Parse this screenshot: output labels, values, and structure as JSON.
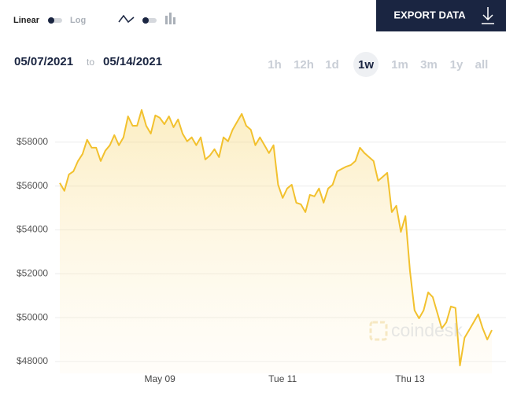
{
  "toolbar": {
    "linear": "Linear",
    "log": "Log",
    "export": "EXPORT DATA"
  },
  "date_range": {
    "from": "05/07/2021",
    "to_word": "to",
    "to": "05/14/2021"
  },
  "ranges": [
    "1h",
    "12h",
    "1d",
    "1w",
    "1m",
    "3m",
    "1y",
    "all"
  ],
  "watermark": "coindesk",
  "chart_data": {
    "type": "line",
    "color": "#f2c12e",
    "grid": true,
    "ylim": [
      47460,
      60540
    ],
    "yticks": [
      {
        "value": 48000,
        "label": "$48000"
      },
      {
        "value": 50000,
        "label": "$50000"
      },
      {
        "value": 52000,
        "label": "$52000"
      },
      {
        "value": 54000,
        "label": "$54000"
      },
      {
        "value": 56000,
        "label": "$56000"
      },
      {
        "value": 58000,
        "label": "$58000"
      }
    ],
    "categories": [
      null,
      null,
      null,
      null,
      null,
      null,
      null,
      null,
      null,
      null,
      null,
      null,
      null,
      null,
      null,
      null,
      null,
      null,
      null,
      null,
      null,
      null,
      "May 09",
      null,
      null,
      null,
      null,
      null,
      null,
      null,
      null,
      null,
      null,
      null,
      null,
      null,
      null,
      null,
      null,
      null,
      null,
      null,
      null,
      null,
      null,
      null,
      null,
      null,
      null,
      "Tue 11",
      null,
      null,
      null,
      null,
      null,
      null,
      null,
      null,
      null,
      null,
      null,
      null,
      null,
      null,
      null,
      null,
      null,
      null,
      null,
      null,
      null,
      null,
      null,
      null,
      null,
      null,
      null,
      "Thu 13",
      null,
      null,
      null,
      null,
      null,
      null,
      null,
      null,
      null,
      null,
      null,
      null,
      null,
      null,
      null,
      null,
      null,
      null
    ],
    "values": [
      56140,
      55780,
      56530,
      56670,
      57140,
      57460,
      58110,
      57750,
      57750,
      57140,
      57610,
      57860,
      58320,
      57860,
      58220,
      59180,
      58750,
      58750,
      59470,
      58750,
      58390,
      59220,
      59110,
      58820,
      59180,
      58680,
      59040,
      58390,
      58040,
      58220,
      57860,
      58220,
      57210,
      57390,
      57680,
      57320,
      58220,
      58040,
      58570,
      58930,
      59290,
      58750,
      58570,
      57860,
      58220,
      57860,
      57500,
      57860,
      56060,
      55460,
      55890,
      56060,
      55240,
      55170,
      54810,
      55600,
      55530,
      55890,
      55240,
      55890,
      56060,
      56670,
      56780,
      56890,
      56960,
      57140,
      57750,
      57500,
      57320,
      57140,
      56240,
      56420,
      56600,
      54810,
      55100,
      53910,
      54630,
      52120,
      50330,
      49970,
      50330,
      51150,
      50940,
      50220,
      49510,
      49790,
      50510,
      50440,
      47820,
      49080,
      49430,
      49790,
      50150,
      49510,
      49000,
      49430
    ]
  }
}
